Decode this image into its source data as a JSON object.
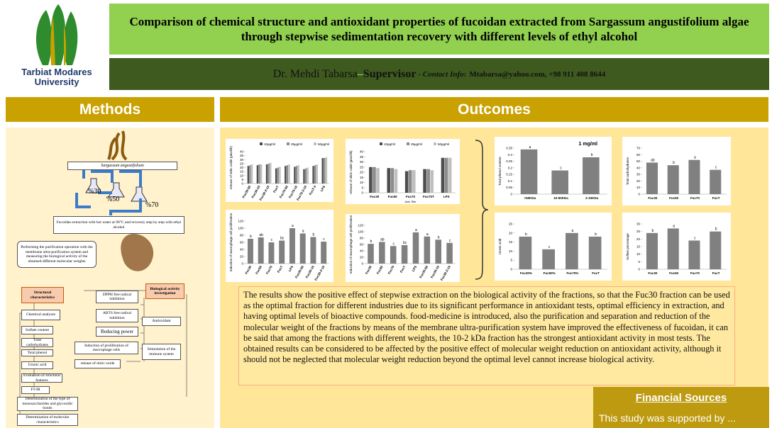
{
  "logo": {
    "line1": "Tarbiat Modares",
    "line2": "University"
  },
  "header": {
    "title": "Comparison of chemical structure and antioxidant properties of fucoidan extracted from Sargassum angustifolium algae through stepwise sedimentation recovery with different levels of ethyl alcohol",
    "name": "Dr. Mehdi Tabarsa",
    "dash": "–",
    "role": "Supervisor",
    "contact_label": "- Contact Info:",
    "contact": "Mtabarsa@yahoo.com, +98 911 408 8644"
  },
  "methods": {
    "heading": "Methods",
    "species": "Sargassum angustifolium",
    "levels": [
      "%30",
      "%50",
      "%70"
    ],
    "extraction": "Fucoidan extraction with hot water at 90°C and recovery step by step with ethyl alcohol",
    "purification": "Performing the purification operation with the membrane ultra-purification system and measuring the biological activity of the obtained different molecular weights",
    "structural": "Structural characteristics",
    "biological": "Biological activity investigation",
    "chemical": "Chemical analyses",
    "sulfate": "Sulfate content",
    "carbs": "Total carbohydrates",
    "phenol": "Total phenol",
    "uronic": "Uronic acid",
    "evaluation": "Evaluation of structural features",
    "ftir": "FT-IR",
    "mono": "Determination of the type of monosaccharides and glycosidic bonds",
    "molecular": "Determination of molecular characteristics",
    "dpph": "DPPH free radical inhibition",
    "abts": "ABTS free radical inhibition",
    "reducing": "Reducing power",
    "induction": "Induction of proliferation of macrophage cells",
    "nitric": "release of nitric oxide",
    "antioxidant": "Antioxidant",
    "immune": "Stimulation of the immune system"
  },
  "outcomes": {
    "heading": "Outcomes",
    "text": "The results show the positive effect of stepwise extraction on the biological activity of the fractions, so that the Fuc30 fraction can be used as the optimal fraction for different industries due to its significant performance in antioxidant tests, optimal efficiency in extraction, and having optimal levels of bioactive compounds. food-medicine is introduced, also the purification and separation and reduction of the molecular weight of the fractions by means of the membrane ultra-purification system have improved the effectiveness of fucoidan, it can be said that among the fractions with different weights, the 10-2 kDa fraction has the strongest antioxidant activity in most tests. The obtained results can be considered to be affected by the positive effect of molecular weight reduction on antioxidant activity, although it should not be neglected that molecular weight reduction beyond the optimal level cannot increase biological activity."
  },
  "financial": {
    "heading": "Financial Sources",
    "text": "This study was supported by ..."
  },
  "chart_data": [
    {
      "type": "bar",
      "y_label": "release of nitric oxide (µmol/lit)",
      "categories": [
        "Fuc30-50",
        "Fuc30-10",
        "Fuc30-2-10",
        "FucT",
        "Fuc70-50",
        "Fuc70-10",
        "Fuc70-2-10",
        "FucT-3",
        "LPS"
      ],
      "series": [
        {
          "name": "10µg/ml",
          "color": "#4d4d4d",
          "values": [
            22,
            23,
            24,
            19,
            22,
            21,
            18,
            22,
            32
          ]
        },
        {
          "name": "25µg/ml",
          "color": "#8c8c8c",
          "values": [
            23,
            24,
            25,
            20,
            23,
            22,
            19,
            23,
            32
          ]
        },
        {
          "name": "50µg/ml",
          "color": "#bfbfbf",
          "values": [
            24,
            24,
            26,
            21,
            24,
            23,
            20,
            24,
            33
          ]
        }
      ],
      "ylim": [
        0,
        40
      ],
      "yticks": [
        0,
        5,
        10,
        15,
        20,
        25,
        30,
        35,
        40
      ]
    },
    {
      "type": "bar",
      "y_label": "release of nitric oxide (µmol/lit)",
      "x_label": "Axis Title",
      "categories": [
        "Fuc30",
        "Fuc50",
        "Fuc70",
        "Fuc70T",
        "LPS"
      ],
      "series": [
        {
          "name": "10µg/ml",
          "color": "#4d4d4d",
          "values": [
            25,
            24,
            21,
            23,
            34
          ]
        },
        {
          "name": "25µg/ml",
          "color": "#8c8c8c",
          "values": [
            25,
            24,
            22,
            23,
            34
          ]
        },
        {
          "name": "50µg/ml",
          "color": "#bfbfbf",
          "values": [
            24,
            23,
            22,
            22,
            34
          ]
        }
      ],
      "ylim": [
        0,
        40
      ],
      "yticks": [
        0,
        5,
        10,
        15,
        20,
        25,
        30,
        35,
        40
      ]
    },
    {
      "type": "bar",
      "title": "1 mg/ml",
      "y_label": "Total phenol content",
      "categories": [
        ">50KDa",
        "10-50KDa",
        "2-10KDa"
      ],
      "values": [
        0.34,
        0.18,
        0.28
      ],
      "annotations": [
        "a",
        "c",
        "b"
      ],
      "color": "#808080",
      "ylim": [
        0,
        0.35
      ],
      "yticks": [
        0,
        0.05,
        0.1,
        0.15,
        0.2,
        0.25,
        0.3,
        0.35
      ]
    },
    {
      "type": "bar",
      "y_label": "Total carbohydrates",
      "categories": [
        "Fuc30",
        "Fuc50",
        "Fuc70",
        "FucT"
      ],
      "values": [
        48,
        44,
        52,
        37
      ],
      "annotations": [
        "ab",
        "b",
        "a",
        "c"
      ],
      "color": "#808080",
      "ylim": [
        0,
        70
      ],
      "yticks": [
        0,
        10,
        20,
        30,
        40,
        50,
        60,
        70
      ]
    },
    {
      "type": "bar",
      "y_label": "Induction of macrophage cell proliferation",
      "categories": [
        "Fuc30",
        "Fuc50",
        "Fuc70",
        "FucT",
        "LPS",
        "Fuc30-50",
        "Fuc30-10",
        "Fuc30-2-10"
      ],
      "values": [
        70,
        74,
        60,
        65,
        100,
        85,
        75,
        62
      ],
      "annotations": [
        "b",
        "ab",
        "c",
        "bc",
        "a",
        "a",
        "b",
        "c"
      ],
      "color": "#808080",
      "ylim": [
        0,
        120
      ],
      "yticks": [
        0,
        20,
        40,
        60,
        80,
        100,
        120
      ]
    },
    {
      "type": "bar",
      "y_label": "Induction of macrophage cell proliferation",
      "categories": [
        "Fuc30",
        "Fuc50",
        "Fuc70",
        "FucT",
        "LPS",
        "Fuc30-50",
        "Fuc30-10",
        "Fuc30-2-10"
      ],
      "values": [
        62,
        68,
        55,
        58,
        98,
        85,
        75,
        65
      ],
      "annotations": [
        "b",
        "ab",
        "c",
        "bc",
        "a",
        "a",
        "b",
        "c"
      ],
      "color": "#808080",
      "ylim": [
        0,
        120
      ],
      "yticks": [
        0,
        20,
        40,
        60,
        80,
        100,
        120
      ]
    },
    {
      "type": "bar",
      "y_label": "Uronic acid",
      "categories": [
        "Fuc30%",
        "Fuc50%",
        "Fuc70%",
        "FucT"
      ],
      "values": [
        18,
        11,
        20,
        18
      ],
      "annotations": [
        "b",
        "c",
        "a",
        "b"
      ],
      "color": "#808080",
      "ylim": [
        0,
        25
      ],
      "yticks": [
        0,
        5,
        10,
        15,
        20,
        25
      ]
    },
    {
      "type": "bar",
      "y_label": "Sulfate percentage",
      "categories": [
        "Fuc30",
        "Fuc50",
        "Fuc70",
        "FucT"
      ],
      "values": [
        24,
        27,
        19,
        25
      ],
      "annotations": [
        "b",
        "a",
        "c",
        "b"
      ],
      "color": "#808080",
      "ylim": [
        0,
        30
      ],
      "yticks": [
        0,
        5,
        10,
        15,
        20,
        25,
        30
      ]
    }
  ]
}
